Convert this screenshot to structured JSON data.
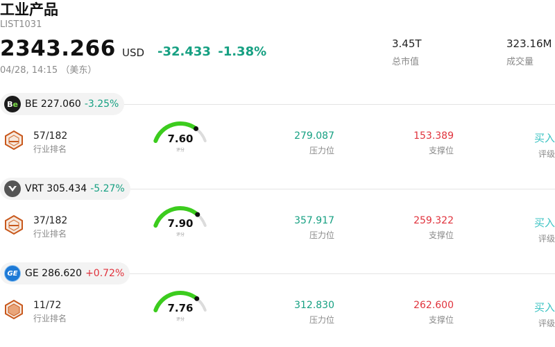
{
  "header": {
    "title": "工业产品",
    "code": "LIST1031",
    "price": "2343.266",
    "currency": "USD",
    "change": "-32.433",
    "change_pct": "-1.38%",
    "time": "04/28, 14:15 （美东）",
    "market_cap": {
      "value": "3.45T",
      "label": "总市值"
    },
    "volume": {
      "value": "323.16M",
      "label": "成交量"
    }
  },
  "colors": {
    "down": "#16a082",
    "up": "#e0323c",
    "rating": "#3cc3c3",
    "gauge": "#3ccc1e"
  },
  "stocks": [
    {
      "symbol": "BE",
      "price": "227.060",
      "change_pct": "-3.25%",
      "direction": "down",
      "logo_icon": "bloom-energy-logo-icon",
      "rank": "57/182",
      "rank_label": "行业排名",
      "score": "7.60",
      "score_level": 0.76,
      "score_label": "评分",
      "resistance": "279.087",
      "resistance_label": "压力位",
      "support": "153.389",
      "support_label": "支撑位",
      "rating": "买入",
      "rating_label": "评级"
    },
    {
      "symbol": "VRT",
      "price": "305.434",
      "change_pct": "-5.27%",
      "direction": "down",
      "logo_icon": "vertiv-logo-icon",
      "rank": "37/182",
      "rank_label": "行业排名",
      "score": "7.90",
      "score_level": 0.79,
      "score_label": "评分",
      "resistance": "357.917",
      "resistance_label": "压力位",
      "support": "259.322",
      "support_label": "支撑位",
      "rating": "买入",
      "rating_label": "评级"
    },
    {
      "symbol": "GE",
      "price": "286.620",
      "change_pct": "+0.72%",
      "direction": "up",
      "logo_icon": "ge-logo-icon",
      "rank": "11/72",
      "rank_label": "行业排名",
      "score": "7.76",
      "score_level": 0.776,
      "score_label": "评分",
      "resistance": "312.830",
      "resistance_label": "压力位",
      "support": "262.600",
      "support_label": "支撑位",
      "rating": "买入",
      "rating_label": "评级"
    }
  ]
}
